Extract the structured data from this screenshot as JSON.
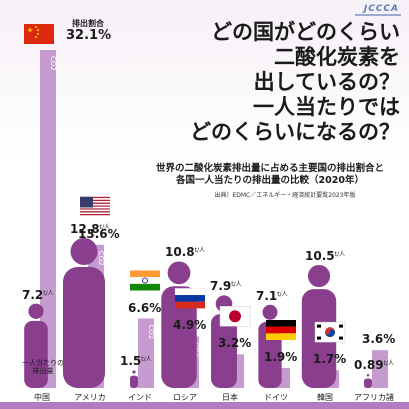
{
  "title_lines": [
    "どの国がどのくらい",
    "二酸化炭素を",
    "出しているの？",
    "一人当たりでは",
    "どのくらいになるの？"
  ],
  "subtitle_lines": [
    "世界の二酸化炭素排出量に占める主要国の排出割合と",
    "各国一人当たりの排出量の比較（2020年）"
  ],
  "source": "出典）EDMC／エネルギー・経済統計要覧2023年版",
  "logo": "JCCCA",
  "legend_share_label": "排出割合",
  "percap_note": "一人当たりの排出量",
  "percap_unit": "t/人",
  "co2_label": "CO2",
  "colors": {
    "share_bar": "#b37bc0",
    "person": "#8a3f8e",
    "text": "#1a1a1a"
  },
  "chart_data": {
    "type": "bar",
    "title": "",
    "categories": [
      "中国",
      "アメリカ",
      "インド",
      "ロシア",
      "日本",
      "ドイツ",
      "韓国",
      "アフリカ諸国"
    ],
    "series": [
      {
        "name": "排出割合",
        "unit": "%",
        "values": [
          32.1,
          13.6,
          6.6,
          4.9,
          3.2,
          1.9,
          1.7,
          3.6
        ]
      },
      {
        "name": "一人当たりの排出量",
        "unit": "t/人",
        "values": [
          7.2,
          12.8,
          1.5,
          10.8,
          7.9,
          7.1,
          10.5,
          0.89
        ]
      }
    ],
    "share_labels": [
      "32.1%",
      "13.6%",
      "6.6%",
      "4.9%",
      "3.2%",
      "1.9%",
      "1.7%",
      "3.6%"
    ],
    "percap_labels": [
      "7.2",
      "12.8",
      "1.5",
      "10.8",
      "7.9",
      "7.1",
      "10.5",
      "0.89"
    ],
    "flags": [
      "china",
      "usa",
      "india",
      "russia",
      "japan",
      "germany",
      "korea",
      ""
    ]
  }
}
